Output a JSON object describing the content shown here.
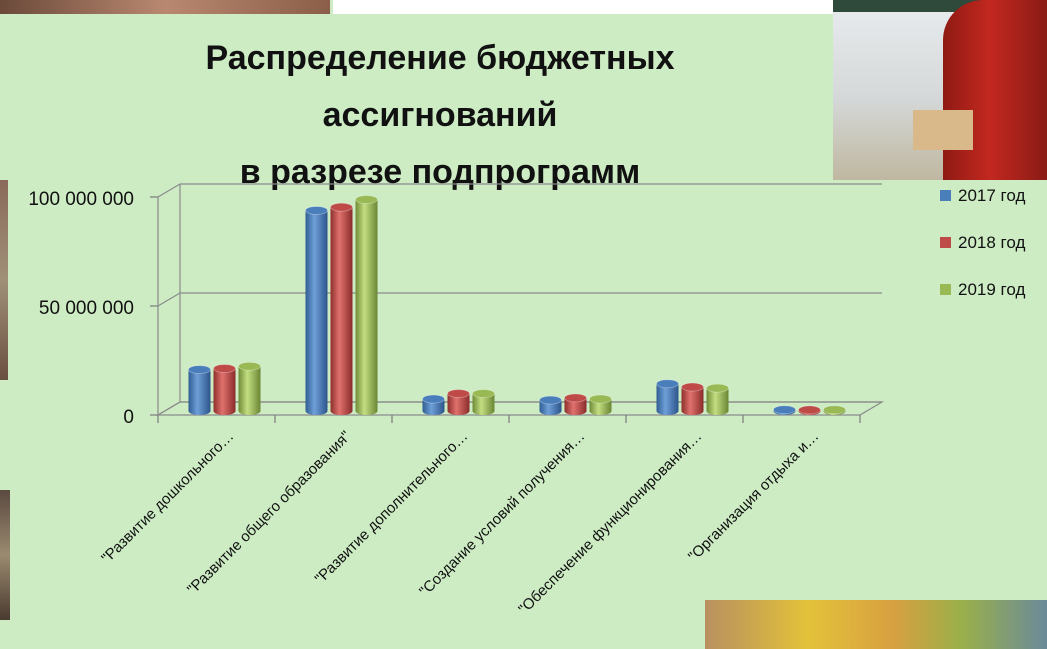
{
  "title_lines": [
    "Распределение бюджетных",
    "ассигнований",
    "в разрезе подпрограмм"
  ],
  "chart_data": {
    "type": "bar",
    "title": "Распределение бюджетных ассигнований в разрезе подпрограмм",
    "categories": [
      "\"Развитие дошкольного…",
      "\"Развитие общего образования\"",
      "\"Развитие дополнительного…",
      "\"Создание условий получения…",
      "\"Обеспечение функционирования…",
      "\"Организация отдыха и…"
    ],
    "series": [
      {
        "name": "2017 год",
        "color": "#4a7ebb",
        "values": [
          19000000,
          92000000,
          5500000,
          5000000,
          12500000,
          600000
        ]
      },
      {
        "name": "2018 год",
        "color": "#be4b48",
        "values": [
          19500000,
          93500000,
          8000000,
          6000000,
          11000000,
          500000
        ]
      },
      {
        "name": "2019 год",
        "color": "#98b954",
        "values": [
          20500000,
          97000000,
          8000000,
          5500000,
          10500000,
          600000
        ]
      }
    ],
    "y_ticks": [
      "0",
      "50 000 000",
      "100 000 000"
    ],
    "ylim": [
      0,
      100000000
    ],
    "grid": true,
    "legend_position": "right"
  }
}
